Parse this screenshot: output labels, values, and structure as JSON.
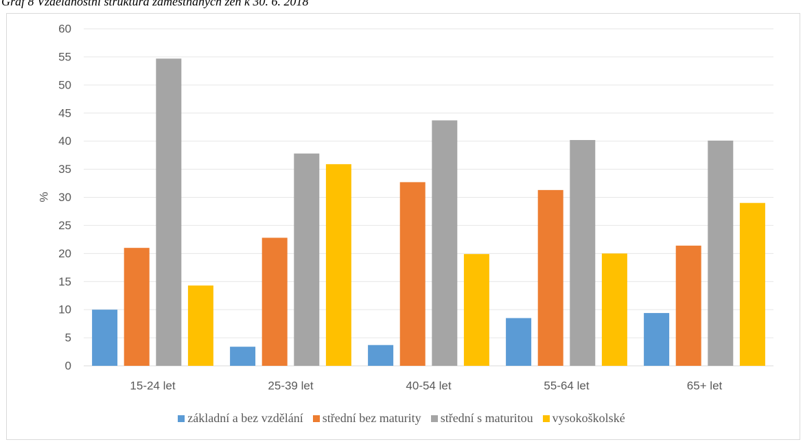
{
  "caption": "Graf 8 Vzdělanostní struktura zaměstnaných žen k 30. 6. 2018",
  "chart_data": {
    "type": "bar",
    "title": "",
    "xlabel": "",
    "ylabel": "%",
    "ylim": [
      0,
      60
    ],
    "yticks": [
      0,
      5,
      10,
      15,
      20,
      25,
      30,
      35,
      40,
      45,
      50,
      55,
      60
    ],
    "grid": true,
    "legend_position": "bottom",
    "categories": [
      "15-24 let",
      "25-39 let",
      "40-54 let",
      "55-64 let",
      "65+ let"
    ],
    "series": [
      {
        "name": "základní a bez vzdělání",
        "color": "#5b9bd5",
        "values": [
          10.0,
          3.4,
          3.7,
          8.5,
          9.4
        ]
      },
      {
        "name": "střední bez maturity",
        "color": "#ed7d31",
        "values": [
          21.0,
          22.8,
          32.7,
          31.3,
          21.4
        ]
      },
      {
        "name": "střední s maturitou",
        "color": "#a5a5a5",
        "values": [
          54.7,
          37.8,
          43.7,
          40.2,
          40.1
        ]
      },
      {
        "name": "vysokoškolské",
        "color": "#ffc000",
        "values": [
          14.3,
          35.9,
          19.9,
          20.0,
          29.0
        ]
      }
    ]
  }
}
